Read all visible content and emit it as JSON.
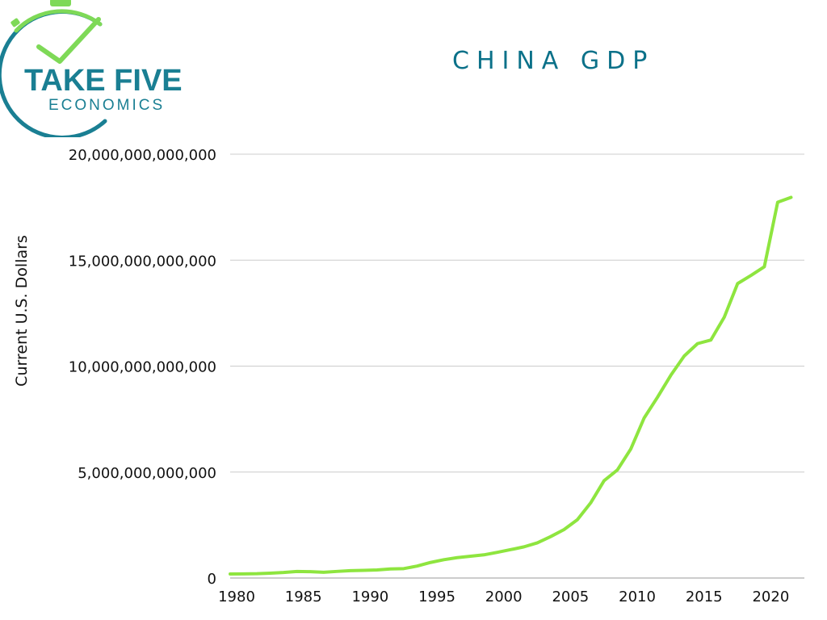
{
  "logo": {
    "brand_top": "TAKE FIVE",
    "brand_bottom": "ECONOMICS"
  },
  "colors": {
    "title": "#0b7189",
    "line": "#8ee53f",
    "grid": "#cccccc",
    "axis_text": "#111111",
    "logo_teal": "#1a7f93",
    "logo_green": "#7ed957"
  },
  "chart_data": {
    "type": "line",
    "title": "CHINA GDP",
    "xlabel": "",
    "ylabel": "Current U.S. Dollars",
    "xlim": [
      1980,
      2022
    ],
    "ylim": [
      0,
      20000000000000
    ],
    "grid": true,
    "y_ticks": [
      {
        "value": 0,
        "label": "0"
      },
      {
        "value": 5000000000000,
        "label": "5,000,000,000,000"
      },
      {
        "value": 10000000000000,
        "label": "10,000,000,000,000"
      },
      {
        "value": 15000000000000,
        "label": "15,000,000,000,000"
      },
      {
        "value": 20000000000000,
        "label": "20,000,000,000,000"
      }
    ],
    "x_ticks": [
      {
        "value": 1980,
        "label": "1980"
      },
      {
        "value": 1985,
        "label": "1985"
      },
      {
        "value": 1990,
        "label": "1990"
      },
      {
        "value": 1995,
        "label": "1995"
      },
      {
        "value": 2000,
        "label": "2000"
      },
      {
        "value": 2005,
        "label": "2005"
      },
      {
        "value": 2010,
        "label": "2010"
      },
      {
        "value": 2015,
        "label": "2015"
      },
      {
        "value": 2020,
        "label": "2020"
      }
    ],
    "series": [
      {
        "x": [
          1980,
          1981,
          1982,
          1983,
          1984,
          1985,
          1986,
          1987,
          1988,
          1989,
          1990,
          1991,
          1992,
          1993,
          1994,
          1995,
          1996,
          1997,
          1998,
          1999,
          2000,
          2001,
          2002,
          2003,
          2004,
          2005,
          2006,
          2007,
          2008,
          2009,
          2010,
          2011,
          2012,
          2013,
          2014,
          2015,
          2016,
          2017,
          2018,
          2019,
          2020,
          2021,
          2022
        ],
        "y": [
          191000000000,
          196000000000,
          205000000000,
          230000000000,
          260000000000,
          309000000000,
          300000000000,
          273000000000,
          312000000000,
          348000000000,
          361000000000,
          383000000000,
          427000000000,
          444000000000,
          564000000000,
          734000000000,
          864000000000,
          962000000000,
          1029000000000,
          1094000000000,
          1211000000000,
          1339000000000,
          1471000000000,
          1660000000000,
          1955000000000,
          2286000000000,
          2752000000000,
          3550000000000,
          4594000000000,
          5102000000000,
          6087000000000,
          7552000000000,
          8532000000000,
          9570000000000,
          10476000000000,
          11062000000000,
          11233000000000,
          12310000000000,
          13895000000000,
          14280000000000,
          14688000000000,
          17734000000000,
          17963000000000
        ]
      }
    ]
  }
}
